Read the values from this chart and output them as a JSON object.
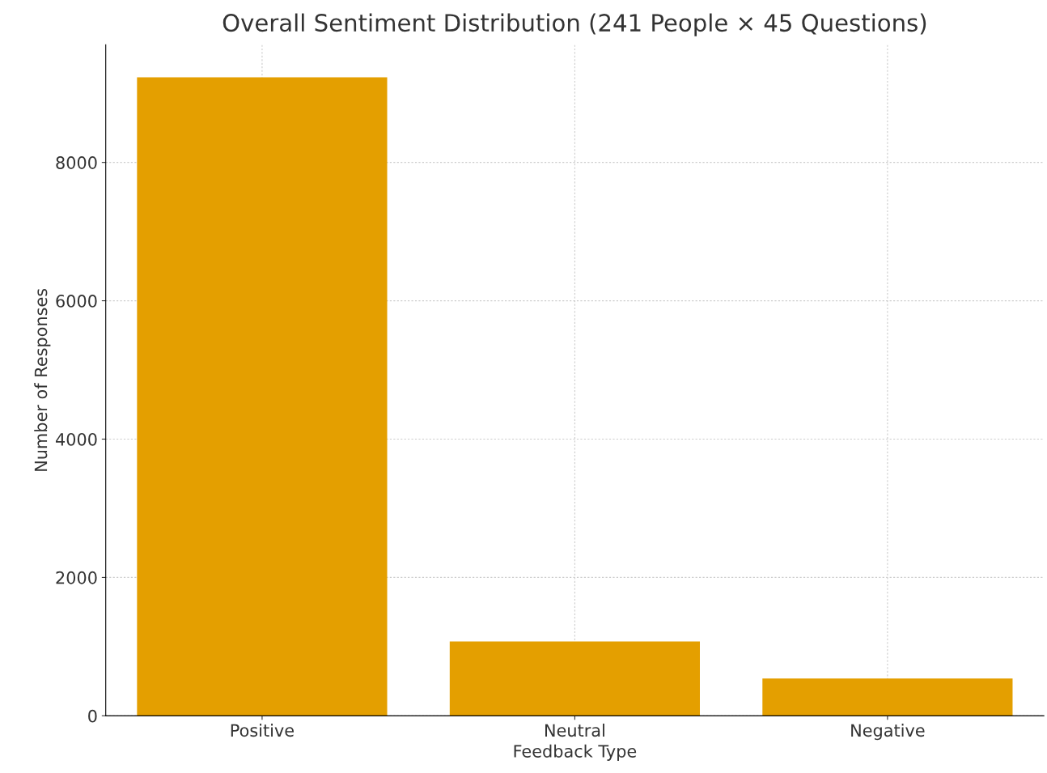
{
  "chart_data": {
    "type": "bar",
    "title": "Overall Sentiment Distribution (241 People × 45 Questions)",
    "xlabel": "Feedback Type",
    "ylabel": "Number of Responses",
    "categories": [
      "Positive",
      "Neutral",
      "Negative"
    ],
    "values": [
      9230,
      1075,
      540
    ],
    "color": "#e49f00",
    "ylim": [
      0,
      9700
    ],
    "yticks": [
      0,
      2000,
      4000,
      6000,
      8000
    ],
    "grid": true
  }
}
